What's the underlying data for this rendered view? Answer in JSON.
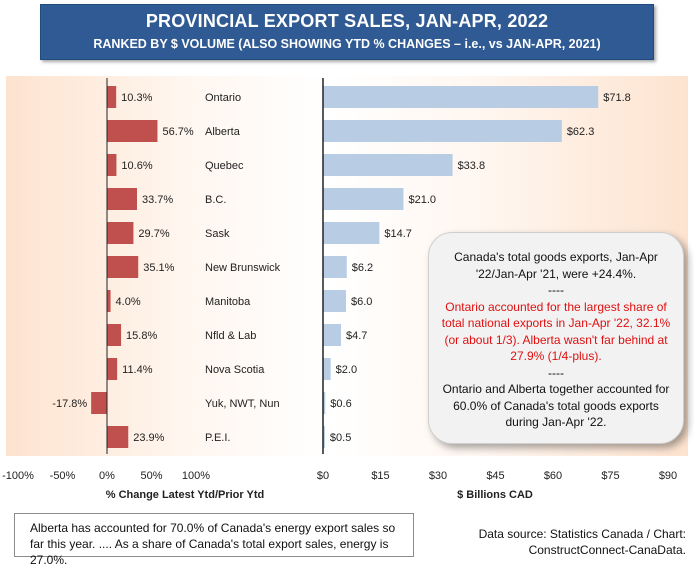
{
  "header": {
    "title": "PROVINCIAL EXPORT SALES, JAN-APR, 2022",
    "subtitle": "RANKED BY $ VOLUME (ALSO SHOWING YTD % CHANGES – i.e., vs JAN-APR, 2021)"
  },
  "chart_data": [
    {
      "type": "bar",
      "orientation": "horizontal",
      "categories": [
        "Ontario",
        "Alberta",
        "Quebec",
        "B.C.",
        "Sask",
        "New Brunswick",
        "Manitoba",
        "Nfld & Lab",
        "Nova Scotia",
        "Yuk, NWT, Nun",
        "P.E.I."
      ],
      "values": [
        10.3,
        56.7,
        10.6,
        33.7,
        29.7,
        35.1,
        4.0,
        15.8,
        11.4,
        -17.8,
        23.9
      ],
      "data_labels": [
        "10.3%",
        "56.7%",
        "10.6%",
        "33.7%",
        "29.7%",
        "35.1%",
        "4.0%",
        "15.8%",
        "11.4%",
        "-17.8%",
        "23.9%"
      ],
      "xlabel": "% Change Latest Ytd/Prior Ytd",
      "xlim": [
        -100,
        100
      ],
      "xticks": [
        "-100%",
        "-50%",
        "0%",
        "50%",
        "100%"
      ],
      "bar_color": "#c0504d"
    },
    {
      "type": "bar",
      "orientation": "horizontal",
      "categories": [
        "Ontario",
        "Alberta",
        "Quebec",
        "B.C.",
        "Sask",
        "New Brunswick",
        "Manitoba",
        "Nfld & Lab",
        "Nova Scotia",
        "Yuk, NWT, Nun",
        "P.E.I."
      ],
      "values": [
        71.8,
        62.3,
        33.8,
        21.0,
        14.7,
        6.2,
        6.0,
        4.7,
        2.0,
        0.6,
        0.5
      ],
      "data_labels": [
        "$71.8",
        "$62.3",
        "$33.8",
        "$21.0",
        "$14.7",
        "$6.2",
        "$6.0",
        "$4.7",
        "$2.0",
        "$0.6",
        "$0.5"
      ],
      "xlabel": "$ Billions CAD",
      "xlim": [
        0,
        90
      ],
      "xticks": [
        "$0",
        "$15",
        "$30",
        "$45",
        "$60",
        "$75",
        "$90"
      ],
      "bar_color": "#b8cce4"
    }
  ],
  "callout": {
    "line1": "Canada's total goods exports, Jan-Apr '22/Jan-Apr '21, were +24.4%.",
    "sep1": "----",
    "red_text": "Ontario accounted for the largest share of total national exports in Jan-Apr '22, 32.1% (or about 1/3). Alberta wasn't far behind at 27.9% (1/4-plus).",
    "sep2": "----",
    "line3": "Ontario and Alberta together accounted for 60.0% of Canada's total goods exports during Jan-Apr '22."
  },
  "footnote": "Alberta has accounted for 70.0% of Canada's energy export sales so far this year. .... As a share of Canada's total export sales, energy is 27.0%.",
  "source": "Data source: Statistics Canada / Chart: ConstructConnect-CanaData."
}
